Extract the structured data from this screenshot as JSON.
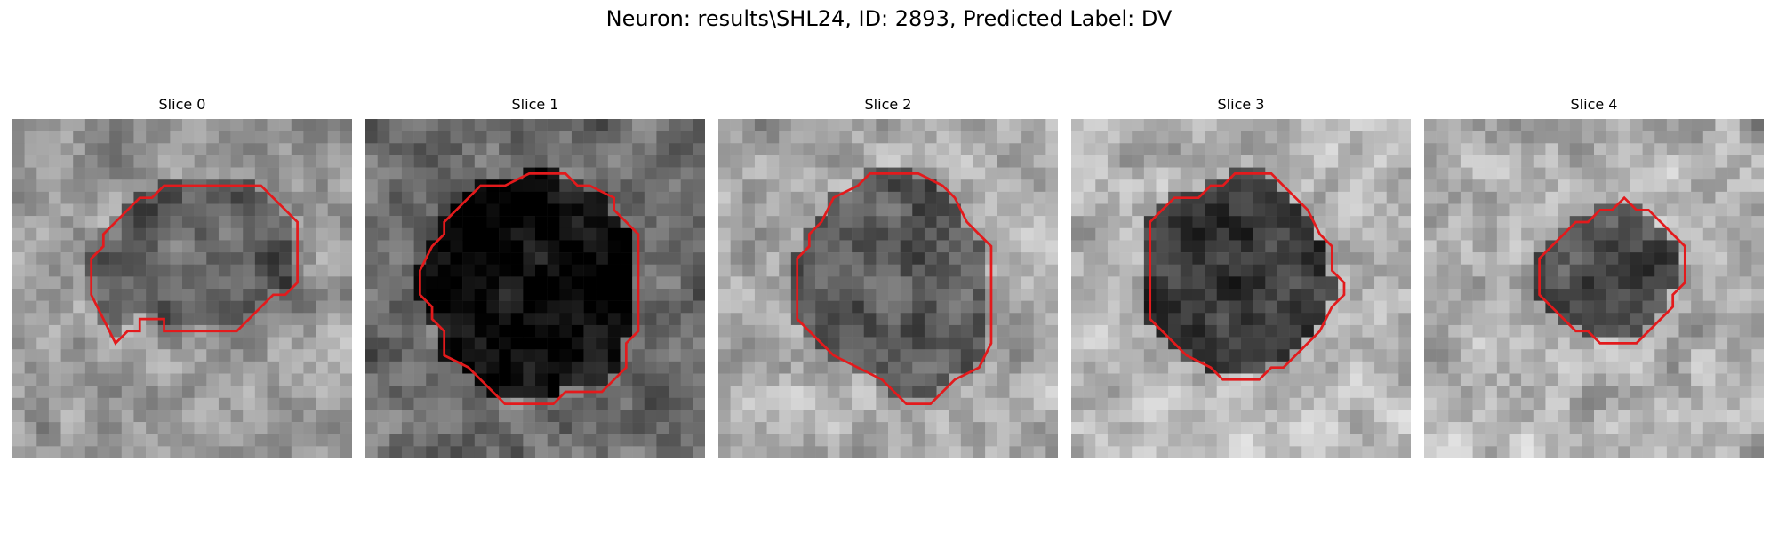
{
  "figure": {
    "title": "Neuron: results\\SHL24, ID: 2893, Predicted Label: DV"
  },
  "slices": [
    {
      "label": "Slice 0",
      "contour_color": "#e31a1c",
      "seed": 11,
      "base": 150,
      "inner": 95,
      "contour": [
        [
          8.5,
          18.5
        ],
        [
          9.5,
          17.5
        ],
        [
          10.5,
          17.5
        ],
        [
          10.5,
          16.5
        ],
        [
          12.5,
          16.5
        ],
        [
          12.5,
          17.5
        ],
        [
          18.5,
          17.5
        ],
        [
          21.5,
          14.5
        ],
        [
          22.5,
          14.5
        ],
        [
          23.5,
          13.5
        ],
        [
          23.5,
          8.5
        ],
        [
          22.5,
          7.5
        ],
        [
          20.5,
          5.5
        ],
        [
          17.5,
          5.5
        ],
        [
          12.5,
          5.5
        ],
        [
          11.5,
          6.5
        ],
        [
          10.5,
          6.5
        ],
        [
          8.5,
          8.5
        ],
        [
          7.5,
          9.5
        ],
        [
          7.5,
          10.5
        ],
        [
          6.5,
          11.5
        ],
        [
          6.5,
          14.5
        ]
      ]
    },
    {
      "label": "Slice 1",
      "contour_color": "#e31a1c",
      "seed": 23,
      "base": 110,
      "inner": 8,
      "contour": [
        [
          4.5,
          12.5
        ],
        [
          4.5,
          14.5
        ],
        [
          5.5,
          15.5
        ],
        [
          5.5,
          16.5
        ],
        [
          6.5,
          17.5
        ],
        [
          6.5,
          19.5
        ],
        [
          8.5,
          20.5
        ],
        [
          9.5,
          21.5
        ],
        [
          11.5,
          23.5
        ],
        [
          15.5,
          23.5
        ],
        [
          16.5,
          22.5
        ],
        [
          19.5,
          22.5
        ],
        [
          20.5,
          21.5
        ],
        [
          21.5,
          20.5
        ],
        [
          21.5,
          18.5
        ],
        [
          22.5,
          17.5
        ],
        [
          22.5,
          9.5
        ],
        [
          21.5,
          8.5
        ],
        [
          20.5,
          7.5
        ],
        [
          20.5,
          6.5
        ],
        [
          18.5,
          5.5
        ],
        [
          17.5,
          5.5
        ],
        [
          16.5,
          4.5
        ],
        [
          13.5,
          4.5
        ],
        [
          11.5,
          5.5
        ],
        [
          9.5,
          5.5
        ],
        [
          8.5,
          6.5
        ],
        [
          7.5,
          7.5
        ],
        [
          6.5,
          8.5
        ],
        [
          6.5,
          9.5
        ],
        [
          5.5,
          10.5
        ]
      ]
    },
    {
      "label": "Slice 2",
      "contour_color": "#e31a1c",
      "seed": 37,
      "base": 170,
      "inner": 90,
      "contour": [
        [
          6.5,
          13.5
        ],
        [
          6.5,
          16.5
        ],
        [
          7.5,
          17.5
        ],
        [
          8.5,
          18.5
        ],
        [
          9.5,
          19.5
        ],
        [
          11.5,
          20.5
        ],
        [
          13.5,
          21.5
        ],
        [
          14.5,
          22.5
        ],
        [
          15.5,
          23.5
        ],
        [
          17.5,
          23.5
        ],
        [
          18.5,
          22.5
        ],
        [
          19.5,
          21.5
        ],
        [
          21.5,
          20.5
        ],
        [
          22.5,
          18.5
        ],
        [
          22.5,
          12.5
        ],
        [
          22.5,
          10.5
        ],
        [
          21.5,
          9.5
        ],
        [
          20.5,
          8.5
        ],
        [
          19.5,
          6.5
        ],
        [
          18.5,
          5.5
        ],
        [
          16.5,
          4.5
        ],
        [
          12.5,
          4.5
        ],
        [
          11.5,
          5.5
        ],
        [
          9.5,
          6.5
        ],
        [
          8.5,
          8.5
        ],
        [
          7.5,
          9.5
        ],
        [
          7.5,
          10.5
        ],
        [
          6.5,
          11.5
        ]
      ]
    },
    {
      "label": "Slice 3",
      "contour_color": "#e31a1c",
      "seed": 51,
      "base": 180,
      "inner": 60,
      "contour": [
        [
          6.5,
          8.5
        ],
        [
          6.5,
          16.5
        ],
        [
          7.5,
          17.5
        ],
        [
          8.5,
          18.5
        ],
        [
          9.5,
          19.5
        ],
        [
          11.5,
          20.5
        ],
        [
          12.5,
          21.5
        ],
        [
          15.5,
          21.5
        ],
        [
          16.5,
          20.5
        ],
        [
          17.5,
          20.5
        ],
        [
          19.5,
          18.5
        ],
        [
          20.5,
          17.5
        ],
        [
          21.5,
          15.5
        ],
        [
          22.5,
          14.5
        ],
        [
          22.5,
          13.5
        ],
        [
          21.5,
          12.5
        ],
        [
          21.5,
          10.5
        ],
        [
          20.5,
          9.5
        ],
        [
          19.5,
          7.5
        ],
        [
          18.5,
          6.5
        ],
        [
          17.5,
          5.5
        ],
        [
          16.5,
          4.5
        ],
        [
          14.5,
          4.5
        ],
        [
          13.5,
          4.5
        ],
        [
          12.5,
          5.5
        ],
        [
          11.5,
          5.5
        ],
        [
          10.5,
          6.5
        ],
        [
          8.5,
          6.5
        ],
        [
          7.5,
          7.5
        ]
      ]
    },
    {
      "label": "Slice 4",
      "contour_color": "#e31a1c",
      "seed": 67,
      "base": 175,
      "inner": 85,
      "contour": [
        [
          9.5,
          11.5
        ],
        [
          9.5,
          14.5
        ],
        [
          10.5,
          15.5
        ],
        [
          11.5,
          16.5
        ],
        [
          12.5,
          17.5
        ],
        [
          13.5,
          17.5
        ],
        [
          14.5,
          18.5
        ],
        [
          17.5,
          18.5
        ],
        [
          18.5,
          17.5
        ],
        [
          19.5,
          16.5
        ],
        [
          20.5,
          15.5
        ],
        [
          20.5,
          14.5
        ],
        [
          21.5,
          13.5
        ],
        [
          21.5,
          10.5
        ],
        [
          20.5,
          9.5
        ],
        [
          19.5,
          8.5
        ],
        [
          18.5,
          7.5
        ],
        [
          17.5,
          7.5
        ],
        [
          16.5,
          6.5
        ],
        [
          15.5,
          7.5
        ],
        [
          14.5,
          7.5
        ],
        [
          13.5,
          8.5
        ],
        [
          12.5,
          8.5
        ],
        [
          11.5,
          9.5
        ],
        [
          10.5,
          10.5
        ]
      ]
    }
  ]
}
